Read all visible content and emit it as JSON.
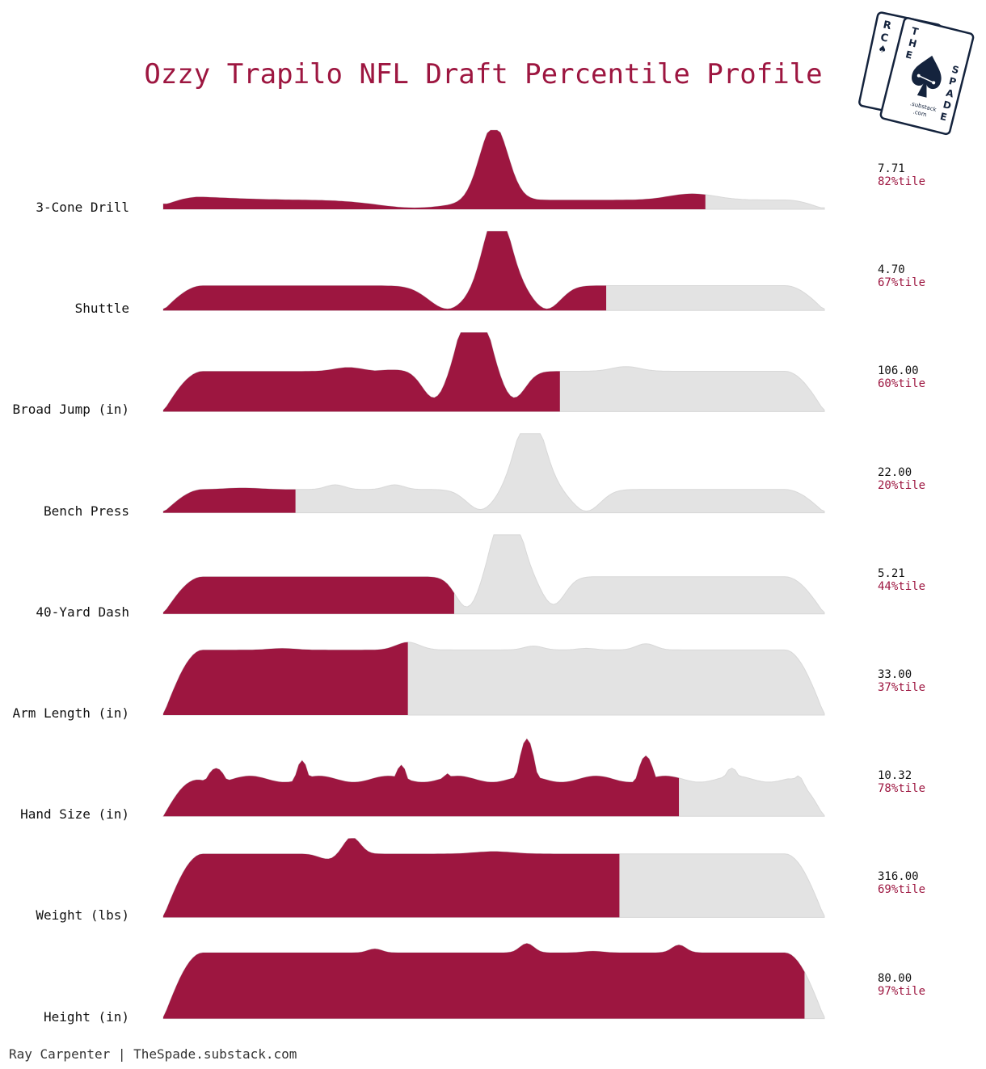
{
  "title": "Ozzy Trapilo NFL Draft Percentile Profile",
  "footer": "Ray Carpenter | TheSpade.substack.com",
  "logo": {
    "back_card_letters": [
      "R",
      "C",
      "♠"
    ],
    "front_card_letters_left": [
      "T",
      "H",
      "E"
    ],
    "front_card_letters_right": [
      "S",
      "P",
      "A",
      "D",
      "E"
    ],
    "substack": ".substack",
    "com": ".com"
  },
  "colors": {
    "highlight": "#9d1640",
    "background_fill": "#e3e3e3",
    "logo": "#14233d"
  },
  "chart_data": {
    "type": "area",
    "description_type": "ridgeline",
    "title": "Ozzy Trapilo NFL Draft Percentile Profile",
    "rows": [
      {
        "metric": "3-Cone Drill",
        "value": "7.71",
        "percentile_label": "82%tile",
        "percentile": 82
      },
      {
        "metric": "Shuttle",
        "value": "4.70",
        "percentile_label": "67%tile",
        "percentile": 67
      },
      {
        "metric": "Broad Jump (in)",
        "value": "106.00",
        "percentile_label": "60%tile",
        "percentile": 60
      },
      {
        "metric": "Bench Press",
        "value": "22.00",
        "percentile_label": "20%tile",
        "percentile": 20
      },
      {
        "metric": "40-Yard Dash",
        "value": "5.21",
        "percentile_label": "44%tile",
        "percentile": 44
      },
      {
        "metric": "Arm Length (in)",
        "value": "33.00",
        "percentile_label": "37%tile",
        "percentile": 37
      },
      {
        "metric": "Hand Size (in)",
        "value": "10.32",
        "percentile_label": "78%tile",
        "percentile": 78
      },
      {
        "metric": "Weight (lbs)",
        "value": "316.00",
        "percentile_label": "69%tile",
        "percentile": 69
      },
      {
        "metric": "Height (in)",
        "value": "80.00",
        "percentile_label": "97%tile",
        "percentile": 97
      }
    ]
  }
}
